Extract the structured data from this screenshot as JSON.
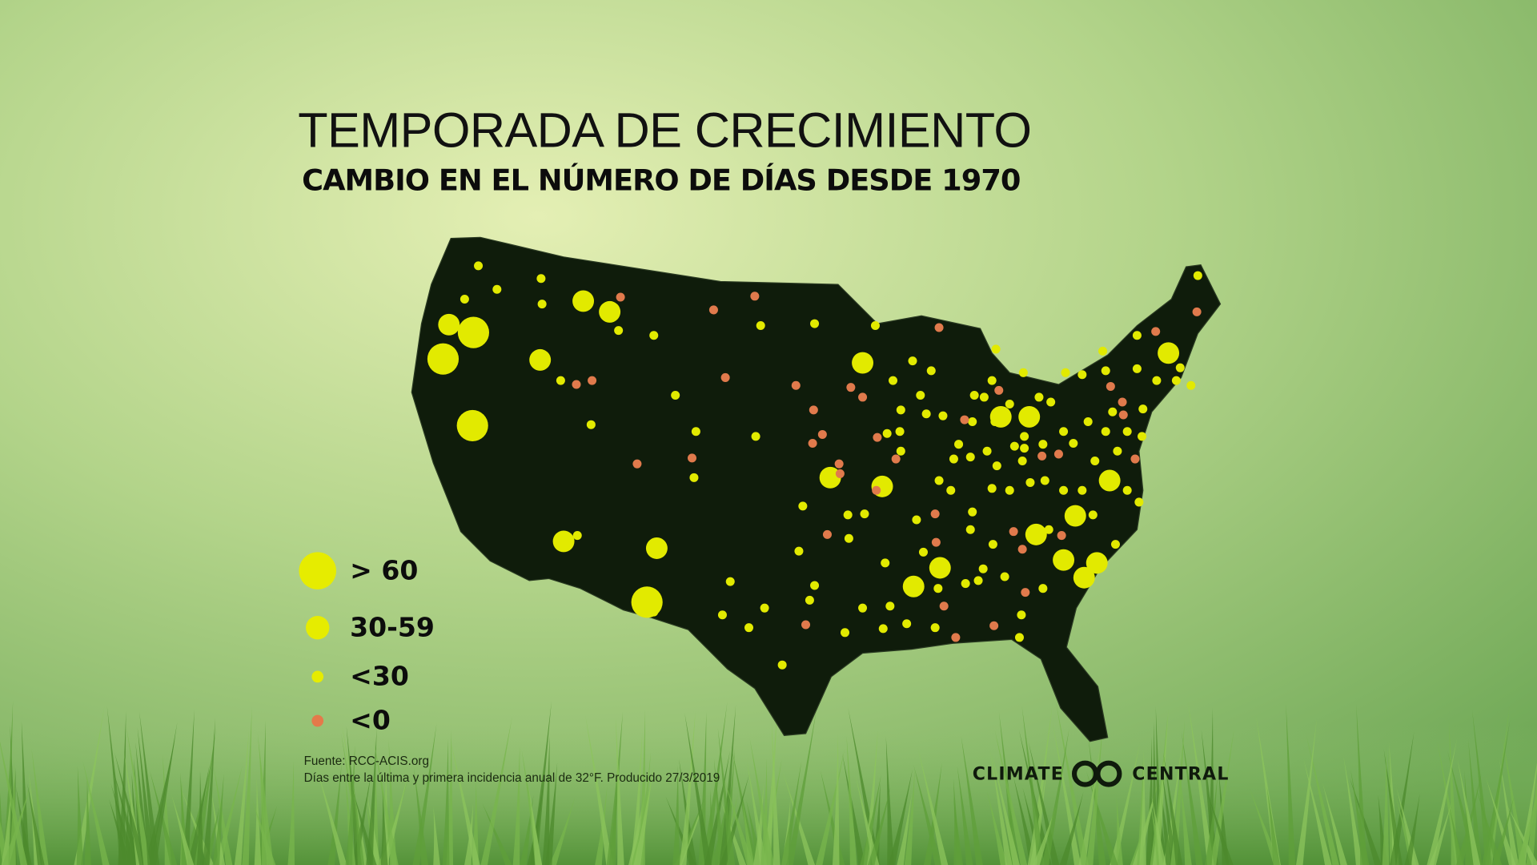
{
  "title": "TEMPORADA DE CRECIMIENTO",
  "subtitle": "CAMBIO EN EL NÚMERO DE DÍAS DESDE 1970",
  "legend": [
    {
      "label": "> 60"
    },
    {
      "label": "30-59"
    },
    {
      "label": "<30"
    },
    {
      "label": "<0"
    }
  ],
  "source": [
    "Fuente: RCC-ACIS.org",
    "Días entre la última y primera incidencia anual de 32°F. Producido 27/3/2019"
  ],
  "logo": [
    "CLIMATE",
    "CENTRAL"
  ]
}
